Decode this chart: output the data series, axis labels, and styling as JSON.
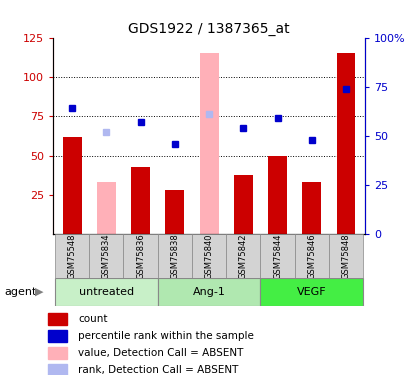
{
  "title": "GDS1922 / 1387365_at",
  "samples": [
    "GSM75548",
    "GSM75834",
    "GSM75836",
    "GSM75838",
    "GSM75840",
    "GSM75842",
    "GSM75844",
    "GSM75846",
    "GSM75848"
  ],
  "red_bars": [
    62,
    0,
    43,
    28,
    0,
    38,
    50,
    33,
    115
  ],
  "pink_bars": [
    0,
    33,
    0,
    0,
    115,
    0,
    0,
    0,
    0
  ],
  "blue_vals": [
    64,
    0,
    57,
    46,
    0,
    54,
    59,
    48,
    74
  ],
  "lavender_vals": [
    0,
    52,
    0,
    0,
    61,
    0,
    0,
    0,
    0
  ],
  "absent_indices": [
    1,
    4
  ],
  "ylim_left": [
    0,
    125
  ],
  "yticks_left": [
    25,
    50,
    75,
    100,
    125
  ],
  "ytick_labels_right": [
    "0",
    "25",
    "50",
    "75",
    "100%"
  ],
  "hlines": [
    50,
    75,
    100
  ],
  "red_color": "#cc0000",
  "pink_color": "#ffb0b8",
  "blue_color": "#0000cc",
  "lavender_color": "#b0b8f0",
  "groups": [
    {
      "label": "untreated",
      "start": 0,
      "end": 2,
      "color": "#c8f0c8"
    },
    {
      "label": "Ang-1",
      "start": 3,
      "end": 5,
      "color": "#b0e8b0"
    },
    {
      "label": "VEGF",
      "start": 6,
      "end": 8,
      "color": "#44ee44"
    }
  ],
  "legend_items": [
    {
      "label": "count",
      "color": "#cc0000"
    },
    {
      "label": "percentile rank within the sample",
      "color": "#0000cc"
    },
    {
      "label": "value, Detection Call = ABSENT",
      "color": "#ffb0b8"
    },
    {
      "label": "rank, Detection Call = ABSENT",
      "color": "#b0b8f0"
    }
  ]
}
